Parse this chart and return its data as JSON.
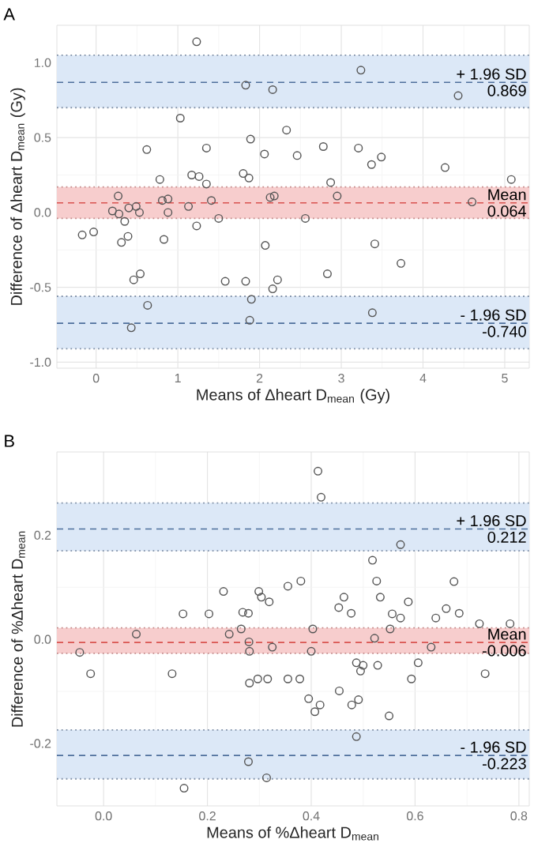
{
  "chart_data": [
    {
      "type": "scatter",
      "title": "A",
      "xlabel": "Means of Δheart D$_{mean}$ (Gy)",
      "ylabel": "Difference of Δheart D$_{mean}$ (Gy)",
      "color": "#555555",
      "marker": "circle",
      "grid": true,
      "xlim": [
        -0.48,
        5.3
      ],
      "ylim": [
        -1.04,
        1.25
      ],
      "xticks": [
        0,
        1,
        2,
        3,
        4,
        5
      ],
      "yticks": [
        {
          "value": -1,
          "label": "-1.0"
        },
        {
          "value": -0.5,
          "label": "-0.5"
        },
        {
          "value": 0,
          "label": "0.0"
        },
        {
          "value": 0.5,
          "label": "0.5"
        },
        {
          "value": 1,
          "label": "1.0"
        }
      ],
      "x": [
        1.23,
        3.24,
        1.83,
        2.16,
        4.43,
        1.03,
        2.33,
        1.89,
        0.62,
        1.35,
        2.78,
        3.21,
        2.06,
        2.46,
        3.49,
        3.37,
        4.27,
        0.78,
        1.17,
        1.26,
        1.35,
        1.8,
        1.87,
        2.87,
        5.08,
        0.27,
        0.81,
        0.88,
        1.41,
        1.13,
        2.13,
        2.18,
        2.95,
        4.6,
        0.2,
        0.28,
        0.4,
        0.49,
        0.53,
        0.88,
        0.35,
        1.5,
        2.56,
        1.23,
        -0.17,
        -0.03,
        0.31,
        0.39,
        0.83,
        2.07,
        3.41,
        3.73,
        0.54,
        0.46,
        1.58,
        1.83,
        2.22,
        2.16,
        2.83,
        1.9,
        0.63,
        1.88,
        3.38,
        0.43
      ],
      "values": [
        1.14,
        0.95,
        0.85,
        0.82,
        0.78,
        0.63,
        0.55,
        0.49,
        0.42,
        0.43,
        0.44,
        0.43,
        0.39,
        0.38,
        0.37,
        0.32,
        0.3,
        0.22,
        0.25,
        0.24,
        0.19,
        0.26,
        0.23,
        0.2,
        0.22,
        0.11,
        0.08,
        0.09,
        0.08,
        0.04,
        0.1,
        0.11,
        0.11,
        0.07,
        0.01,
        -0.01,
        0.03,
        0.04,
        0.0,
        0.0,
        -0.06,
        -0.04,
        -0.04,
        -0.09,
        -0.15,
        -0.13,
        -0.2,
        -0.16,
        -0.18,
        -0.22,
        -0.21,
        -0.34,
        -0.41,
        -0.45,
        -0.46,
        -0.46,
        -0.45,
        -0.51,
        -0.41,
        -0.58,
        -0.62,
        -0.72,
        -0.67,
        -0.77
      ],
      "bands": [
        {
          "axis": "y",
          "from": 0.7,
          "to": 1.05,
          "color": "#dce8f7"
        },
        {
          "axis": "y",
          "from": -0.04,
          "to": 0.17,
          "color": "#f7cdcd"
        },
        {
          "axis": "y",
          "from": -0.91,
          "to": -0.56,
          "color": "#dce8f7"
        }
      ],
      "ref_lines": [
        {
          "axis": "y",
          "value": 0.869,
          "label": "+ 1.96 SD",
          "color": "#4e6f9c",
          "line_style": "dashed"
        },
        {
          "axis": "y",
          "value": 0.064,
          "label": "Mean",
          "color": "#d9534f",
          "line_style": "dashed"
        },
        {
          "axis": "y",
          "value": -0.74,
          "label": "- 1.96 SD",
          "color": "#4e6f9c",
          "line_style": "dashed"
        },
        {
          "axis": "y",
          "value": 1.05,
          "color": "#7f8fa6",
          "line_style": "dotted"
        },
        {
          "axis": "y",
          "value": 0.7,
          "color": "#7f8fa6",
          "line_style": "dotted"
        },
        {
          "axis": "y",
          "value": 0.17,
          "color": "#c48a8a",
          "line_style": "dotted"
        },
        {
          "axis": "y",
          "value": -0.04,
          "color": "#c48a8a",
          "line_style": "dotted"
        },
        {
          "axis": "y",
          "value": -0.56,
          "color": "#7f8fa6",
          "line_style": "dotted"
        },
        {
          "axis": "y",
          "value": -0.91,
          "color": "#7f8fa6",
          "line_style": "dotted"
        }
      ],
      "annotations": [
        {
          "text": "0.869",
          "y": 0.869
        },
        {
          "text": "0.064",
          "y": 0.064
        },
        {
          "text": "-0.740",
          "y": -0.74
        }
      ]
    },
    {
      "type": "scatter",
      "title": "B",
      "xlabel": "Means of %Δheart D$_{mean}$",
      "ylabel": "Difference of %Δheart D$_{mean}$",
      "color": "#555555",
      "marker": "circle",
      "grid": true,
      "xlim": [
        -0.09,
        0.82
      ],
      "ylim": [
        -0.32,
        0.36
      ],
      "xticks": [
        {
          "value": 0,
          "label": "0.0"
        },
        0.2,
        0.4,
        0.6,
        0.8
      ],
      "yticks": [
        -0.2,
        {
          "value": 0,
          "label": "0.0"
        },
        0.2
      ],
      "x": [
        0.413,
        0.419,
        0.572,
        0.518,
        0.526,
        0.675,
        0.355,
        0.38,
        0.231,
        0.299,
        0.304,
        0.319,
        0.463,
        0.453,
        0.477,
        0.533,
        0.587,
        0.556,
        0.572,
        0.153,
        0.203,
        0.268,
        0.279,
        0.64,
        0.66,
        0.685,
        0.063,
        0.242,
        0.265,
        0.403,
        0.552,
        0.522,
        0.724,
        0.783,
        0.28,
        0.281,
        0.325,
        0.4,
        0.631,
        -0.046,
        -0.025,
        0.132,
        0.281,
        0.297,
        0.316,
        0.355,
        0.378,
        0.487,
        0.5,
        0.495,
        0.528,
        0.593,
        0.606,
        0.735,
        0.454,
        0.395,
        0.417,
        0.407,
        0.478,
        0.491,
        0.55,
        0.487,
        0.279,
        0.314,
        0.155
      ],
      "values": [
        0.323,
        0.273,
        0.182,
        0.152,
        0.112,
        0.111,
        0.102,
        0.112,
        0.092,
        0.092,
        0.081,
        0.072,
        0.081,
        0.061,
        0.05,
        0.081,
        0.072,
        0.049,
        0.041,
        0.049,
        0.049,
        0.052,
        0.05,
        0.041,
        0.059,
        0.05,
        0.01,
        0.01,
        0.02,
        0.02,
        0.02,
        0.002,
        0.03,
        0.03,
        -0.005,
        -0.023,
        -0.015,
        -0.023,
        -0.015,
        -0.025,
        -0.066,
        -0.066,
        -0.084,
        -0.076,
        -0.076,
        -0.076,
        -0.076,
        -0.045,
        -0.05,
        -0.061,
        -0.05,
        -0.076,
        -0.045,
        -0.066,
        -0.099,
        -0.114,
        -0.126,
        -0.139,
        -0.126,
        -0.116,
        -0.147,
        -0.187,
        -0.235,
        -0.266,
        -0.286
      ],
      "bands": [
        {
          "axis": "y",
          "from": 0.17,
          "to": 0.262,
          "color": "#dce8f7"
        },
        {
          "axis": "y",
          "from": -0.027,
          "to": 0.022,
          "color": "#f7cdcd"
        },
        {
          "axis": "y",
          "from": -0.268,
          "to": -0.174,
          "color": "#dce8f7"
        }
      ],
      "ref_lines": [
        {
          "axis": "y",
          "value": 0.212,
          "label": "+ 1.96 SD",
          "color": "#4e6f9c",
          "line_style": "dashed"
        },
        {
          "axis": "y",
          "value": -0.006,
          "label": "Mean",
          "color": "#d9534f",
          "line_style": "dashed"
        },
        {
          "axis": "y",
          "value": -0.223,
          "label": "- 1.96 SD",
          "color": "#4e6f9c",
          "line_style": "dashed"
        },
        {
          "axis": "y",
          "value": 0.262,
          "color": "#7f8fa6",
          "line_style": "dotted"
        },
        {
          "axis": "y",
          "value": 0.17,
          "color": "#7f8fa6",
          "line_style": "dotted"
        },
        {
          "axis": "y",
          "value": 0.022,
          "color": "#c48a8a",
          "line_style": "dotted"
        },
        {
          "axis": "y",
          "value": -0.027,
          "color": "#c48a8a",
          "line_style": "dotted"
        },
        {
          "axis": "y",
          "value": -0.174,
          "color": "#7f8fa6",
          "line_style": "dotted"
        },
        {
          "axis": "y",
          "value": -0.268,
          "color": "#7f8fa6",
          "line_style": "dotted"
        }
      ],
      "annotations": [
        {
          "text": "0.212",
          "y": 0.212
        },
        {
          "text": "-0.006",
          "y": -0.006
        },
        {
          "text": "-0.223",
          "y": -0.223
        }
      ]
    }
  ]
}
